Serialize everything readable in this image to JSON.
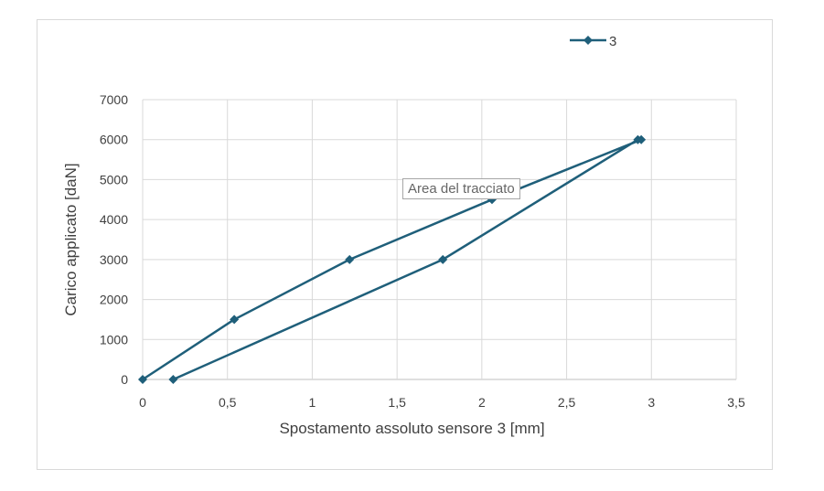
{
  "chart_data": {
    "type": "line",
    "xlabel": "Spostamento assoluto sensore 3 [mm]",
    "ylabel": "Carico applicato [daN]",
    "xlim": [
      0,
      3.5
    ],
    "ylim": [
      0,
      7000
    ],
    "x_ticks": [
      "0",
      "0,5",
      "1",
      "1,5",
      "2",
      "2,5",
      "3",
      "3,5"
    ],
    "y_ticks": [
      "0",
      "1000",
      "2000",
      "3000",
      "4000",
      "5000",
      "6000",
      "7000"
    ],
    "grid": true,
    "legend_position": "top",
    "series": [
      {
        "name": "3",
        "color": "#1f5f7a",
        "marker": "diamond",
        "points": [
          {
            "x": 0.0,
            "y": 0
          },
          {
            "x": 0.54,
            "y": 1500
          },
          {
            "x": 1.22,
            "y": 3000
          },
          {
            "x": 2.06,
            "y": 4500
          },
          {
            "x": 2.94,
            "y": 6000
          },
          {
            "x": 2.92,
            "y": 6000
          },
          {
            "x": 1.77,
            "y": 3000
          },
          {
            "x": 0.18,
            "y": 0
          }
        ]
      }
    ]
  },
  "tooltip": "Area del tracciato"
}
